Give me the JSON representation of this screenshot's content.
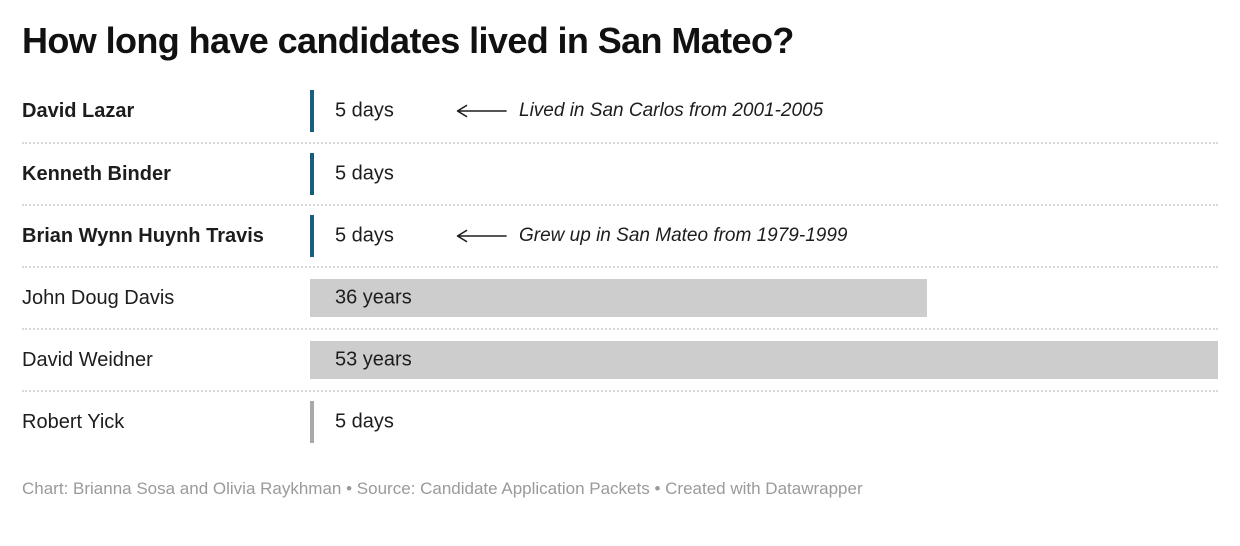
{
  "title": "How long have candidates lived in San Mateo?",
  "footer": "Chart: Brianna Sosa and Olivia Raykhman • Source: Candidate Application Packets • Created with Datawrapper",
  "colors": {
    "highlight_bar": "#175f7d",
    "default_bar": "#cdcdcd",
    "default_tick": "#a9a9a9",
    "text": "#1d1d1d",
    "footer_text": "#9a9a9a",
    "separator": "#d8d8d8"
  },
  "icons": {
    "annotation_arrow": "⟵ long left arrow drawn as SVG line with arrowhead"
  },
  "chart_data": {
    "type": "bar",
    "title": "How long have candidates lived in San Mateo?",
    "orientation": "horizontal",
    "categories": [
      "David Lazar",
      "Kenneth Binder",
      "Brian Wynn Huynh Travis",
      "John Doug Davis",
      "David Weidner",
      "Robert Yick"
    ],
    "values_years": [
      0.014,
      0.014,
      0.014,
      36,
      53,
      0.014
    ],
    "value_labels": [
      "5 days",
      "5 days",
      "5 days",
      "36 years",
      "53 years",
      "5 days"
    ],
    "xlabel": "",
    "ylabel": "",
    "xlim": [
      0,
      53
    ],
    "grid": false,
    "legend": "none",
    "annotations": [
      {
        "category": "David Lazar",
        "text": "Lived in San Carlos from 2001-2005"
      },
      {
        "category": "Brian Wynn Huynh Travis",
        "text": "Grew up in San Mateo from 1979-1999"
      }
    ]
  },
  "rows": [
    {
      "name": "David Lazar",
      "bold": true,
      "years": 0.014,
      "value_label": "5 days",
      "bar_color": "#175f7d",
      "annotation": "Lived in San Carlos from 2001-2005"
    },
    {
      "name": "Kenneth Binder",
      "bold": true,
      "years": 0.014,
      "value_label": "5 days",
      "bar_color": "#175f7d",
      "annotation": ""
    },
    {
      "name": "Brian Wynn Huynh Travis",
      "bold": true,
      "years": 0.014,
      "value_label": "5 days",
      "bar_color": "#175f7d",
      "annotation": "Grew up in San Mateo from 1979-1999"
    },
    {
      "name": "John Doug Davis",
      "bold": false,
      "years": 36,
      "value_label": "36 years",
      "bar_color": "#cdcdcd",
      "annotation": ""
    },
    {
      "name": "David Weidner",
      "bold": false,
      "years": 53,
      "value_label": "53 years",
      "bar_color": "#cdcdcd",
      "annotation": ""
    },
    {
      "name": "Robert Yick",
      "bold": false,
      "years": 0.014,
      "value_label": "5 days",
      "bar_color": "#a9a9a9",
      "annotation": ""
    }
  ]
}
